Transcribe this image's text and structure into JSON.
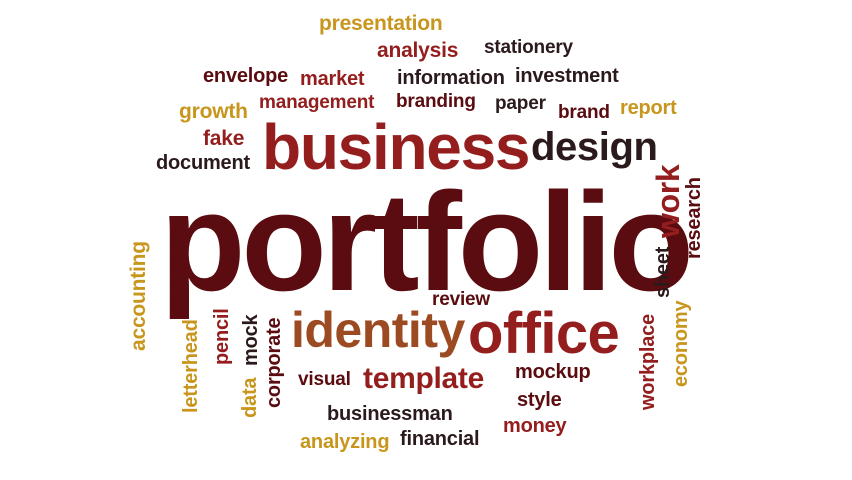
{
  "colors": {
    "background": "#ffffff",
    "gold": "#c8961c",
    "maroon": "#5a0c10",
    "red": "#941d1d",
    "dark": "#2b1a1c",
    "brown": "#9c4a22"
  },
  "words": {
    "portfolio": "portfolio",
    "business": "business",
    "design": "design",
    "identity": "identity",
    "office": "office",
    "template": "template",
    "work": "work",
    "research": "research",
    "sheet": "sheet",
    "presentation": "presentation",
    "analysis": "analysis",
    "stationery": "stationery",
    "envelope": "envelope",
    "market": "market",
    "information": "information",
    "investment": "investment",
    "growth": "growth",
    "management": "management",
    "branding": "branding",
    "paper": "paper",
    "brand": "brand",
    "report": "report",
    "fake": "fake",
    "document": "document",
    "accounting": "accounting",
    "letterhead": "letterhead",
    "pencil": "pencil",
    "data": "data",
    "mock": "mock",
    "corporate": "corporate",
    "visual": "visual",
    "review": "review",
    "mockup": "mockup",
    "style": "style",
    "money": "money",
    "businessman": "businessman",
    "analyzing": "analyzing",
    "financial": "financial",
    "workplace": "workplace",
    "economy": "economy"
  }
}
